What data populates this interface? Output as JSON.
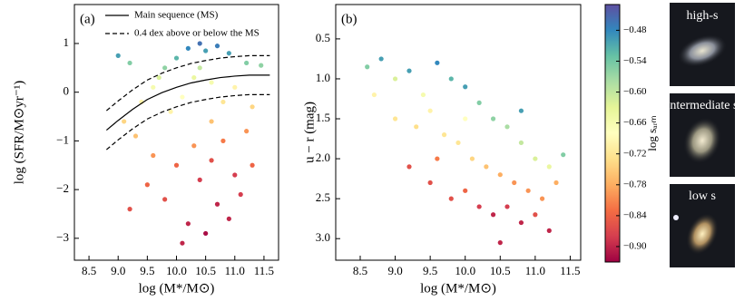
{
  "chart_data": [
    {
      "type": "scatter",
      "panel_label": "(a)",
      "x_label": "log (M*/M⊙)",
      "y_label": "log (SFR/M⊙yr⁻¹)",
      "xlim": [
        8.25,
        11.75
      ],
      "ylim": [
        -3.45,
        1.8
      ],
      "xticks": [
        {
          "value": 8.5,
          "label": "8.5"
        },
        {
          "value": 9,
          "label": "9.0"
        },
        {
          "value": 9.5,
          "label": "9.5"
        },
        {
          "value": 10,
          "label": "10.0"
        },
        {
          "value": 10.5,
          "label": "10.5"
        },
        {
          "value": 11,
          "label": "11.0"
        },
        {
          "value": 11.5,
          "label": "11.5"
        }
      ],
      "yticks": [
        {
          "value": -3,
          "label": "−3"
        },
        {
          "value": -2,
          "label": "−2"
        },
        {
          "value": -1,
          "label": "−1"
        },
        0,
        1
      ],
      "colormap": "Spectral",
      "clim": [
        -0.93,
        -0.43
      ],
      "legend": "upper left",
      "series": [
        {
          "type": "scatter",
          "x": [
            9.0,
            9.2,
            9.4,
            9.6,
            9.8,
            10.0,
            10.2,
            10.4,
            10.5,
            10.7,
            10.9,
            11.2,
            11.45,
            9.1,
            9.3,
            9.6,
            9.9,
            10.1,
            10.3,
            10.6,
            10.8,
            11.0,
            11.3,
            9.2,
            9.5,
            9.8,
            10.0,
            10.2,
            10.3,
            10.4,
            10.5,
            10.6,
            10.7,
            10.8,
            10.9,
            11.0,
            11.1,
            11.2,
            11.3,
            10.1,
            10.6,
            9.7,
            10.4
          ],
          "values": [
            0.75,
            0.6,
            -0.2,
            0.1,
            0.5,
            0.7,
            0.9,
            1.0,
            0.85,
            0.95,
            0.8,
            0.6,
            0.55,
            -0.6,
            -0.9,
            -1.3,
            -0.4,
            -0.1,
            0.3,
            0.2,
            -0.2,
            0.1,
            -0.3,
            -2.4,
            -1.9,
            -2.2,
            -1.5,
            -2.7,
            -1.1,
            -1.8,
            -2.9,
            -1.4,
            -2.3,
            -1.0,
            -2.6,
            -1.7,
            -2.1,
            -0.8,
            -1.5,
            -3.1,
            -0.6,
            0.3,
            0.5
          ],
          "c": [
            -0.5,
            -0.55,
            -0.7,
            -0.66,
            -0.56,
            -0.52,
            -0.48,
            -0.46,
            -0.5,
            -0.47,
            -0.5,
            -0.55,
            -0.56,
            -0.74,
            -0.76,
            -0.8,
            -0.7,
            -0.68,
            -0.64,
            -0.66,
            -0.72,
            -0.7,
            -0.74,
            -0.86,
            -0.84,
            -0.86,
            -0.84,
            -0.9,
            -0.8,
            -0.88,
            -0.92,
            -0.86,
            -0.9,
            -0.82,
            -0.9,
            -0.88,
            -0.88,
            -0.8,
            -0.84,
            -0.9,
            -0.76,
            -0.62,
            -0.6
          ]
        },
        {
          "type": "line",
          "name": "Main sequence (MS)",
          "dash": false,
          "color": "#000000",
          "x": [
            8.8,
            9.0,
            9.25,
            9.5,
            9.75,
            10.0,
            10.25,
            10.5,
            10.75,
            11.0,
            11.25,
            11.5,
            11.6
          ],
          "values": [
            -0.78,
            -0.58,
            -0.35,
            -0.15,
            -0.01,
            0.1,
            0.19,
            0.25,
            0.3,
            0.33,
            0.35,
            0.35,
            0.35
          ]
        },
        {
          "type": "line",
          "name": "0.4 dex above or below the MS",
          "dash": true,
          "color": "#000000",
          "x": [
            8.8,
            9.0,
            9.25,
            9.5,
            9.75,
            10.0,
            10.25,
            10.5,
            10.75,
            11.0,
            11.25,
            11.5,
            11.6
          ],
          "values": [
            -0.38,
            -0.18,
            0.05,
            0.25,
            0.39,
            0.5,
            0.59,
            0.65,
            0.7,
            0.73,
            0.75,
            0.75,
            0.75
          ]
        },
        {
          "type": "line",
          "dash": true,
          "color": "#000000",
          "x": [
            8.8,
            9.0,
            9.25,
            9.5,
            9.75,
            10.0,
            10.25,
            10.5,
            10.75,
            11.0,
            11.25,
            11.5,
            11.6
          ],
          "values": [
            -1.18,
            -0.98,
            -0.75,
            -0.55,
            -0.41,
            -0.3,
            -0.21,
            -0.15,
            -0.1,
            -0.07,
            -0.05,
            -0.05,
            -0.05
          ]
        }
      ]
    },
    {
      "type": "scatter",
      "panel_label": "(b)",
      "x_label": "log (M*/M⊙)",
      "y_label": "u − r (mag)",
      "xlim": [
        8.15,
        11.65
      ],
      "ylim": [
        0.07,
        3.27
      ],
      "y_inverted": true,
      "xticks": [
        {
          "value": 8.5,
          "label": "8.5"
        },
        {
          "value": 9,
          "label": "9.0"
        },
        {
          "value": 9.5,
          "label": "9.5"
        },
        {
          "value": 10,
          "label": "10.0"
        },
        {
          "value": 10.5,
          "label": "10.5"
        },
        {
          "value": 11,
          "label": "11.0"
        },
        {
          "value": 11.5,
          "label": "11.5"
        }
      ],
      "yticks": [
        0.5,
        {
          "value": 1,
          "label": "1.0"
        },
        1.5,
        {
          "value": 2,
          "label": "2.0"
        },
        2.5,
        {
          "value": 3,
          "label": "3.0"
        }
      ],
      "colormap": "Spectral",
      "clim": [
        -0.93,
        -0.43
      ],
      "colorbar": {
        "label": "log sₐᵣₘ",
        "ticks": [
          {
            "value": -0.48,
            "label": "−0.48"
          },
          {
            "value": -0.54,
            "label": "−0.54"
          },
          {
            "value": -0.6,
            "label": "−0.60"
          },
          {
            "value": -0.66,
            "label": "−0.66"
          },
          {
            "value": -0.72,
            "label": "−0.72"
          },
          {
            "value": -0.78,
            "label": "−0.78"
          },
          {
            "value": -0.84,
            "label": "−0.84"
          },
          {
            "value": -0.9,
            "label": "−0.90"
          }
        ]
      },
      "series": [
        {
          "type": "scatter",
          "x": [
            8.6,
            8.8,
            9.0,
            9.2,
            9.4,
            9.6,
            9.8,
            10.0,
            10.2,
            10.4,
            10.6,
            10.8,
            11.0,
            11.2,
            8.7,
            9.0,
            9.3,
            9.5,
            9.7,
            9.9,
            10.1,
            10.3,
            10.5,
            10.7,
            10.9,
            11.1,
            11.3,
            9.2,
            9.5,
            9.8,
            10.0,
            10.2,
            10.4,
            10.6,
            10.8,
            11.0,
            11.2,
            10.5,
            9.6,
            10.0,
            10.8,
            11.4
          ],
          "values": [
            0.85,
            0.75,
            1.0,
            0.9,
            1.2,
            0.8,
            1.0,
            1.1,
            1.3,
            1.5,
            1.6,
            1.8,
            2.0,
            2.1,
            1.2,
            1.5,
            1.6,
            1.4,
            1.7,
            1.8,
            2.0,
            2.1,
            2.2,
            2.3,
            2.4,
            2.5,
            2.3,
            2.1,
            2.3,
            2.5,
            2.4,
            2.6,
            2.7,
            2.6,
            2.8,
            2.7,
            2.9,
            3.05,
            2.0,
            1.5,
            1.4,
            1.95
          ],
          "c": [
            -0.55,
            -0.5,
            -0.62,
            -0.5,
            -0.66,
            -0.48,
            -0.52,
            -0.5,
            -0.55,
            -0.56,
            -0.58,
            -0.6,
            -0.62,
            -0.64,
            -0.7,
            -0.72,
            -0.73,
            -0.7,
            -0.72,
            -0.72,
            -0.74,
            -0.76,
            -0.78,
            -0.8,
            -0.8,
            -0.8,
            -0.78,
            -0.86,
            -0.86,
            -0.86,
            -0.84,
            -0.88,
            -0.9,
            -0.88,
            -0.9,
            -0.86,
            -0.9,
            -0.9,
            -0.82,
            -0.68,
            -0.5,
            -0.55
          ]
        }
      ]
    }
  ],
  "images": [
    {
      "label": "high-s"
    },
    {
      "label": "intermediate s"
    },
    {
      "label": "low s"
    }
  ]
}
